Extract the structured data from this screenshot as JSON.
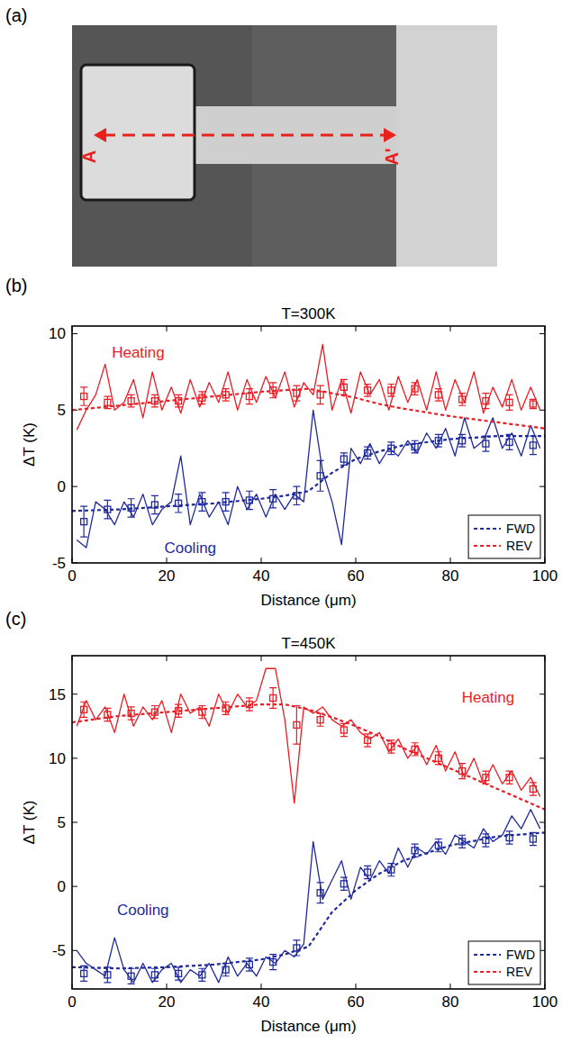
{
  "image": {
    "panel_label": "(a)",
    "marker_start": "A",
    "marker_end": "A'"
  },
  "chart_data": [
    {
      "type": "line",
      "panel_label": "(b)",
      "title": "T=300K",
      "x_label": "Distance (μm)",
      "y_label": "ΔT (K)",
      "xlim": [
        0,
        100
      ],
      "xticks": [
        0,
        20,
        40,
        60,
        80,
        100
      ],
      "ylim": [
        -5,
        10.5
      ],
      "yticks": [
        -5,
        0,
        5,
        10
      ],
      "grid": false,
      "legend": "lower right",
      "series": [
        {
          "type": "line",
          "line_style": "solid",
          "color": "#ec1c24",
          "annotation": {
            "text": "Heating",
            "x": 14,
            "y": 8.8
          },
          "x": [
            1,
            3,
            5,
            7,
            9,
            11,
            13,
            15,
            17,
            19,
            21,
            23,
            25,
            27,
            29,
            31,
            33,
            35,
            37,
            39,
            41,
            43,
            45,
            47,
            49,
            51,
            53,
            55,
            57,
            59,
            61,
            63,
            65,
            67,
            69,
            71,
            73,
            75,
            77,
            79,
            81,
            83,
            85,
            87,
            89,
            91,
            93,
            95,
            97,
            99
          ],
          "values": [
            3.7,
            5.0,
            6.0,
            8.0,
            5.0,
            5.5,
            7.0,
            4.5,
            7.5,
            5.0,
            6.5,
            4.8,
            7.0,
            5.2,
            6.8,
            5.5,
            7.5,
            5.0,
            7.0,
            5.5,
            7.2,
            5.8,
            7.5,
            5.2,
            6.8,
            6.0,
            9.3,
            5.0,
            7.0,
            4.8,
            7.5,
            6.0,
            7.0,
            5.0,
            7.2,
            5.5,
            7.0,
            5.0,
            7.5,
            5.0,
            7.0,
            5.5,
            7.5,
            4.8,
            6.5,
            5.2,
            7.0,
            5.0,
            6.5,
            5.0
          ]
        },
        {
          "type": "line",
          "line_style": "solid",
          "color": "#1f2a9e",
          "annotation": {
            "text": "Cooling",
            "x": 25,
            "y": -4.0
          },
          "x": [
            1,
            3,
            5,
            7,
            9,
            11,
            13,
            15,
            17,
            19,
            21,
            23,
            25,
            27,
            29,
            31,
            33,
            35,
            37,
            39,
            41,
            43,
            45,
            47,
            49,
            51,
            53,
            55,
            57,
            59,
            61,
            63,
            65,
            67,
            69,
            71,
            73,
            75,
            77,
            79,
            81,
            83,
            85,
            87,
            89,
            91,
            93,
            95,
            97,
            99
          ],
          "values": [
            -3.5,
            -4.0,
            -1.0,
            -1.5,
            -2.5,
            -1.0,
            -2.0,
            -0.5,
            -2.5,
            -1.5,
            -1.0,
            2.0,
            -2.5,
            -0.5,
            -2.0,
            -1.0,
            -2.5,
            0.0,
            -1.5,
            -0.5,
            -2.0,
            -0.5,
            -1.5,
            -0.5,
            -1.0,
            5.0,
            1.0,
            -1.0,
            -3.8,
            2.5,
            1.5,
            2.8,
            1.5,
            2.5,
            2.0,
            3.0,
            2.2,
            3.5,
            2.5,
            3.8,
            2.0,
            4.5,
            2.5,
            3.0,
            4.5,
            2.5,
            3.5,
            2.0,
            4.0,
            2.5
          ]
        },
        {
          "type": "scatter",
          "marker": "square",
          "color": "#ec1c24",
          "x": [
            2.5,
            7.5,
            12.5,
            17.5,
            22.5,
            27.5,
            32.5,
            37.5,
            42.5,
            47.5,
            52.5,
            57.5,
            62.5,
            67.5,
            72.5,
            77.5,
            82.5,
            87.5,
            92.5,
            97.5
          ],
          "values": [
            5.9,
            5.5,
            5.6,
            5.6,
            5.6,
            5.8,
            6.0,
            5.9,
            6.3,
            6.1,
            6.0,
            6.5,
            6.3,
            6.3,
            6.4,
            6.0,
            5.7,
            5.6,
            5.5,
            5.4
          ],
          "errors": [
            0.6,
            0.4,
            0.4,
            0.4,
            0.4,
            0.4,
            0.4,
            0.5,
            0.5,
            0.5,
            0.6,
            0.5,
            0.4,
            0.4,
            0.4,
            0.4,
            0.4,
            0.5,
            0.5,
            0.3
          ]
        },
        {
          "type": "scatter",
          "marker": "square",
          "color": "#1f2a9e",
          "x": [
            2.5,
            7.5,
            12.5,
            17.5,
            22.5,
            27.5,
            32.5,
            37.5,
            42.5,
            47.5,
            52.5,
            57.5,
            62.5,
            67.5,
            72.5,
            77.5,
            82.5,
            87.5,
            92.5,
            97.5
          ],
          "values": [
            -2.3,
            -1.5,
            -1.4,
            -1.2,
            -1.1,
            -1.0,
            -1.0,
            -0.9,
            -0.8,
            -0.6,
            0.7,
            1.8,
            2.2,
            2.5,
            2.6,
            3.0,
            3.0,
            2.8,
            2.9,
            2.7
          ],
          "errors": [
            1.0,
            0.6,
            0.6,
            0.6,
            0.6,
            0.6,
            0.6,
            0.6,
            0.6,
            0.6,
            1.0,
            0.4,
            0.4,
            0.4,
            0.4,
            0.4,
            0.4,
            0.5,
            0.5,
            0.6
          ]
        },
        {
          "name": "FWD",
          "type": "line",
          "line_style": "dashed",
          "color": "#1f2a9e",
          "x": [
            0,
            10,
            20,
            30,
            40,
            45,
            50,
            55,
            60,
            65,
            70,
            80,
            90,
            100
          ],
          "values": [
            -1.6,
            -1.5,
            -1.3,
            -1.1,
            -0.8,
            -0.6,
            -0.3,
            0.9,
            1.8,
            2.3,
            2.7,
            3.1,
            3.3,
            3.3
          ]
        },
        {
          "name": "REV",
          "type": "line",
          "line_style": "dashed",
          "color": "#ec1c24",
          "x": [
            0,
            10,
            20,
            30,
            40,
            45,
            50,
            55,
            60,
            65,
            70,
            80,
            90,
            100
          ],
          "values": [
            5.0,
            5.3,
            5.6,
            5.9,
            6.2,
            6.3,
            6.4,
            6.1,
            5.8,
            5.4,
            5.1,
            4.6,
            4.2,
            3.8
          ]
        }
      ]
    },
    {
      "type": "line",
      "panel_label": "(c)",
      "title": "T=450K",
      "x_label": "Distance (μm)",
      "y_label": "ΔT (K)",
      "xlim": [
        0,
        100
      ],
      "xticks": [
        0,
        20,
        40,
        60,
        80,
        100
      ],
      "ylim": [
        -8,
        18
      ],
      "yticks": [
        -5,
        0,
        5,
        10,
        15
      ],
      "grid": false,
      "legend": "lower right",
      "series": [
        {
          "type": "line",
          "line_style": "solid",
          "color": "#ec1c24",
          "annotation": {
            "text": "Heating",
            "x": 88,
            "y": 14.8
          },
          "x": [
            1,
            3,
            5,
            7,
            9,
            11,
            13,
            15,
            17,
            19,
            21,
            23,
            25,
            27,
            29,
            31,
            33,
            35,
            37,
            39,
            41,
            43,
            45,
            47,
            49,
            51,
            53,
            55,
            57,
            59,
            61,
            63,
            65,
            67,
            69,
            71,
            73,
            75,
            77,
            79,
            81,
            83,
            85,
            87,
            89,
            91,
            93,
            95,
            97,
            99
          ],
          "values": [
            12.5,
            14.5,
            13.0,
            14.0,
            12.0,
            15.0,
            12.5,
            14.0,
            13.0,
            14.5,
            12.0,
            15.0,
            13.5,
            14.0,
            12.5,
            15.0,
            13.5,
            15.0,
            14.0,
            14.5,
            17.0,
            17.0,
            13.0,
            6.5,
            14.0,
            13.5,
            14.0,
            13.0,
            12.5,
            13.0,
            12.0,
            11.5,
            12.0,
            10.5,
            11.5,
            10.0,
            11.0,
            9.5,
            11.0,
            9.0,
            10.5,
            8.5,
            10.0,
            8.0,
            9.5,
            8.0,
            9.0,
            7.5,
            8.5,
            7.0
          ]
        },
        {
          "type": "line",
          "line_style": "solid",
          "color": "#1f2a9e",
          "annotation": {
            "text": "Cooling",
            "x": 15,
            "y": -1.8
          },
          "x": [
            1,
            3,
            5,
            7,
            9,
            11,
            13,
            15,
            17,
            19,
            21,
            23,
            25,
            27,
            29,
            31,
            33,
            35,
            37,
            39,
            41,
            43,
            45,
            47,
            49,
            51,
            53,
            55,
            57,
            59,
            61,
            63,
            65,
            67,
            69,
            71,
            73,
            75,
            77,
            79,
            81,
            83,
            85,
            87,
            89,
            91,
            93,
            95,
            97,
            99
          ],
          "values": [
            -5.0,
            -6.0,
            -6.5,
            -7.0,
            -4.0,
            -6.5,
            -7.5,
            -6.0,
            -7.5,
            -6.5,
            -6.0,
            -7.5,
            -6.5,
            -7.0,
            -6.0,
            -7.5,
            -5.5,
            -7.0,
            -6.0,
            -7.0,
            -5.5,
            -6.0,
            -5.0,
            -5.5,
            -4.5,
            3.5,
            -1.0,
            0.5,
            2.0,
            -1.0,
            1.5,
            0.5,
            2.0,
            1.0,
            3.0,
            1.5,
            3.0,
            2.5,
            3.5,
            2.5,
            4.0,
            3.5,
            3.0,
            4.5,
            3.5,
            4.0,
            5.5,
            4.5,
            6.0,
            4.5
          ]
        },
        {
          "type": "scatter",
          "marker": "square",
          "color": "#ec1c24",
          "x": [
            2.5,
            7.5,
            12.5,
            17.5,
            22.5,
            27.5,
            32.5,
            37.5,
            42.5,
            47.5,
            52.5,
            57.5,
            62.5,
            67.5,
            72.5,
            77.5,
            82.5,
            87.5,
            92.5,
            97.5
          ],
          "values": [
            13.8,
            13.4,
            13.5,
            13.6,
            13.7,
            13.6,
            13.9,
            14.2,
            14.7,
            12.6,
            13.0,
            12.2,
            11.4,
            10.9,
            10.7,
            10.0,
            9.0,
            8.5,
            8.5,
            7.6
          ],
          "errors": [
            0.6,
            0.5,
            0.5,
            0.5,
            0.5,
            0.5,
            0.5,
            0.5,
            0.8,
            1.5,
            0.5,
            0.5,
            0.5,
            0.5,
            0.5,
            0.5,
            0.6,
            0.5,
            0.5,
            0.5
          ]
        },
        {
          "type": "scatter",
          "marker": "square",
          "color": "#1f2a9e",
          "x": [
            2.5,
            7.5,
            12.5,
            17.5,
            22.5,
            27.5,
            32.5,
            37.5,
            42.5,
            47.5,
            52.5,
            57.5,
            62.5,
            67.5,
            72.5,
            77.5,
            82.5,
            87.5,
            92.5,
            97.5
          ],
          "values": [
            -6.8,
            -6.9,
            -7.0,
            -6.9,
            -6.8,
            -6.9,
            -6.5,
            -6.1,
            -5.9,
            -4.8,
            -0.5,
            0.2,
            1.1,
            1.3,
            2.8,
            3.2,
            3.5,
            3.6,
            3.8,
            3.7
          ],
          "errors": [
            0.6,
            0.6,
            0.6,
            0.5,
            0.5,
            0.5,
            0.5,
            0.5,
            0.6,
            0.6,
            0.8,
            0.5,
            0.5,
            0.5,
            0.5,
            0.5,
            0.5,
            0.5,
            0.5,
            0.5
          ]
        },
        {
          "name": "FWD",
          "type": "line",
          "line_style": "dashed",
          "color": "#1f2a9e",
          "x": [
            0,
            10,
            20,
            30,
            40,
            45,
            50,
            55,
            60,
            65,
            70,
            80,
            90,
            100
          ],
          "values": [
            -6.3,
            -6.4,
            -6.3,
            -6.1,
            -5.7,
            -5.3,
            -4.7,
            -2.0,
            -0.3,
            1.0,
            2.0,
            3.2,
            3.9,
            4.2
          ]
        },
        {
          "name": "REV",
          "type": "line",
          "line_style": "dashed",
          "color": "#ec1c24",
          "x": [
            0,
            10,
            20,
            30,
            40,
            45,
            50,
            55,
            60,
            65,
            70,
            80,
            90,
            100
          ],
          "values": [
            12.8,
            13.3,
            13.6,
            13.9,
            14.2,
            14.2,
            13.8,
            13.2,
            12.5,
            11.7,
            10.8,
            9.2,
            7.6,
            6.0
          ]
        }
      ]
    }
  ]
}
